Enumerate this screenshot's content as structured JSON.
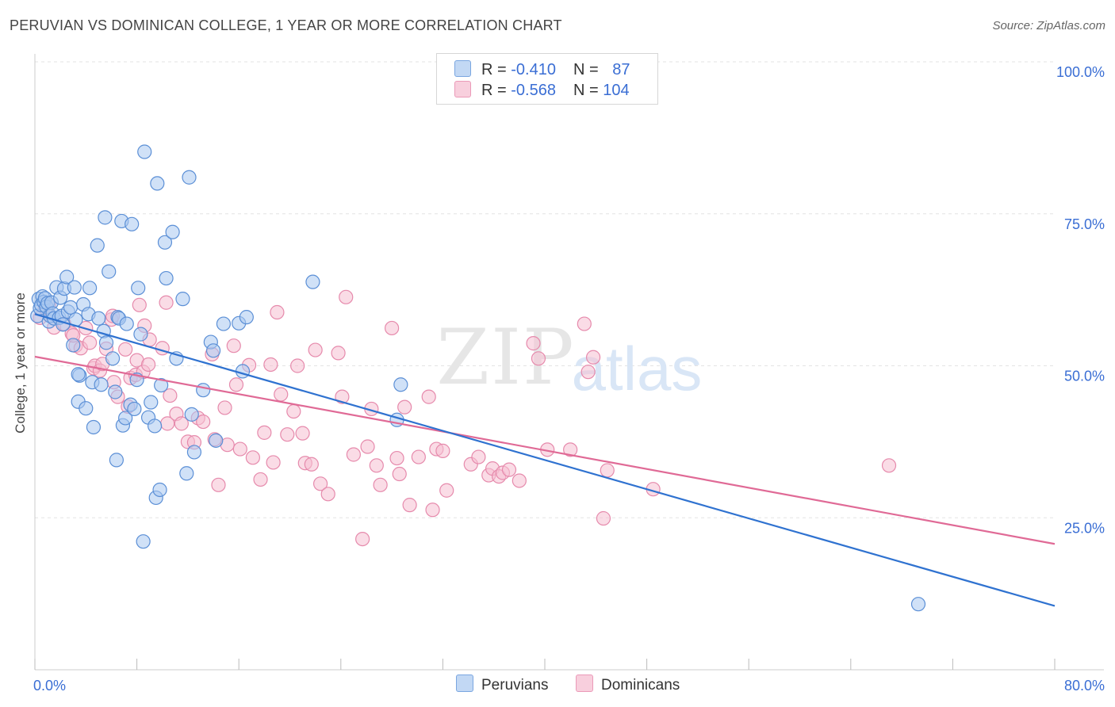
{
  "header": {
    "title": "PERUVIAN VS DOMINICAN COLLEGE, 1 YEAR OR MORE CORRELATION CHART",
    "source": "Source: ZipAtlas.com"
  },
  "watermark": {
    "zip": "ZIP",
    "atlas": "atlas"
  },
  "legend": {
    "r_label": "R = ",
    "n_label": "N = ",
    "series": [
      {
        "r": "-0.410",
        "n": "87"
      },
      {
        "r": "-0.568",
        "n": "104"
      }
    ]
  },
  "bottom_legend": {
    "items": [
      "Peruvians",
      "Dominicans"
    ]
  },
  "colors": {
    "peruvians_fill": "#a9c8f0",
    "peruvians_stroke": "#5b8fd6",
    "peruvians_line": "#2f72d0",
    "dominicans_fill": "#f5bfd2",
    "dominicans_stroke": "#e68aac",
    "dominicans_line": "#e06a96",
    "tick_text": "#3a6ed4",
    "grid": "#e3e3e3"
  },
  "chart_data": {
    "type": "scatter",
    "title": "PERUVIAN VS DOMINICAN COLLEGE, 1 YEAR OR MORE CORRELATION CHART",
    "xlabel": "",
    "ylabel": "College, 1 year or more",
    "xlim": [
      0,
      80
    ],
    "ylim": [
      0,
      100
    ],
    "x_tick_labels": [
      {
        "value": 0,
        "label": "0.0%"
      },
      {
        "value": 80,
        "label": "80.0%"
      }
    ],
    "y_tick_labels": [
      {
        "value": 25,
        "label": "25.0%"
      },
      {
        "value": 50,
        "label": "50.0%"
      },
      {
        "value": 75,
        "label": "75.0%"
      },
      {
        "value": 100,
        "label": "100.0%"
      }
    ],
    "series": [
      {
        "name": "Peruvians",
        "r": -0.41,
        "n": 87,
        "trend": {
          "x": [
            0,
            80
          ],
          "y": [
            58.5,
            10.5
          ]
        },
        "points": [
          [
            0.2,
            58.2
          ],
          [
            0.3,
            61.0
          ],
          [
            0.4,
            59.5
          ],
          [
            0.5,
            60.0
          ],
          [
            0.6,
            61.4
          ],
          [
            0.7,
            60.5
          ],
          [
            0.8,
            61.1
          ],
          [
            0.9,
            59.7
          ],
          [
            1.0,
            60.3
          ],
          [
            1.1,
            57.3
          ],
          [
            1.2,
            58.2
          ],
          [
            1.3,
            60.4
          ],
          [
            1.4,
            58.6
          ],
          [
            1.5,
            57.8
          ],
          [
            1.7,
            62.9
          ],
          [
            1.9,
            57.9
          ],
          [
            2.0,
            61.2
          ],
          [
            2.1,
            58.2
          ],
          [
            2.2,
            56.8
          ],
          [
            2.3,
            62.7
          ],
          [
            2.5,
            64.6
          ],
          [
            2.6,
            58.9
          ],
          [
            2.8,
            59.6
          ],
          [
            3.0,
            53.4
          ],
          [
            3.1,
            62.9
          ],
          [
            3.2,
            57.6
          ],
          [
            3.5,
            48.4
          ],
          [
            3.4,
            44.1
          ],
          [
            3.8,
            60.1
          ],
          [
            4.0,
            43.0
          ],
          [
            4.2,
            58.5
          ],
          [
            4.3,
            62.8
          ],
          [
            4.5,
            47.3
          ],
          [
            4.6,
            39.9
          ],
          [
            4.9,
            69.8
          ],
          [
            5.0,
            57.8
          ],
          [
            5.2,
            46.9
          ],
          [
            5.4,
            55.7
          ],
          [
            5.5,
            74.4
          ],
          [
            5.6,
            53.8
          ],
          [
            5.8,
            65.5
          ],
          [
            6.1,
            51.2
          ],
          [
            6.3,
            45.7
          ],
          [
            6.4,
            34.5
          ],
          [
            6.5,
            58.0
          ],
          [
            6.6,
            57.8
          ],
          [
            6.8,
            73.8
          ],
          [
            6.9,
            40.2
          ],
          [
            7.1,
            41.4
          ],
          [
            7.2,
            56.9
          ],
          [
            7.5,
            43.6
          ],
          [
            7.6,
            73.3
          ],
          [
            7.8,
            42.9
          ],
          [
            8.0,
            47.7
          ],
          [
            8.1,
            62.8
          ],
          [
            8.3,
            55.2
          ],
          [
            8.5,
            21.1
          ],
          [
            8.6,
            85.2
          ],
          [
            8.9,
            41.5
          ],
          [
            9.1,
            44.0
          ],
          [
            9.4,
            40.1
          ],
          [
            9.5,
            28.3
          ],
          [
            9.6,
            80.0
          ],
          [
            9.8,
            29.6
          ],
          [
            9.9,
            46.8
          ],
          [
            10.2,
            70.3
          ],
          [
            10.3,
            64.4
          ],
          [
            10.8,
            72.0
          ],
          [
            11.1,
            51.2
          ],
          [
            11.6,
            61.0
          ],
          [
            11.9,
            32.3
          ],
          [
            12.1,
            81.0
          ],
          [
            12.3,
            42.0
          ],
          [
            12.5,
            35.8
          ],
          [
            13.2,
            46.0
          ],
          [
            13.8,
            53.9
          ],
          [
            14.0,
            52.5
          ],
          [
            14.2,
            37.7
          ],
          [
            14.8,
            56.9
          ],
          [
            16.0,
            57.0
          ],
          [
            16.3,
            49.1
          ],
          [
            16.6,
            58.0
          ],
          [
            21.8,
            63.8
          ],
          [
            28.4,
            41.1
          ],
          [
            28.7,
            46.9
          ],
          [
            69.3,
            10.8
          ],
          [
            3.4,
            48.6
          ]
        ]
      },
      {
        "name": "Dominicans",
        "r": -0.568,
        "n": 104,
        "trend": {
          "x": [
            0,
            80
          ],
          "y": [
            51.5,
            20.7
          ]
        },
        "points": [
          [
            0.4,
            57.9
          ],
          [
            0.8,
            59.5
          ],
          [
            1.1,
            60.0
          ],
          [
            1.5,
            56.3
          ],
          [
            2.3,
            56.9
          ],
          [
            2.9,
            55.3
          ],
          [
            3.2,
            53.3
          ],
          [
            3.6,
            52.9
          ],
          [
            4.0,
            56.2
          ],
          [
            4.3,
            53.8
          ],
          [
            4.6,
            49.6
          ],
          [
            4.7,
            50.0
          ],
          [
            5.1,
            49.2
          ],
          [
            5.3,
            50.3
          ],
          [
            5.6,
            52.8
          ],
          [
            6.0,
            57.6
          ],
          [
            6.1,
            58.2
          ],
          [
            6.2,
            47.3
          ],
          [
            6.5,
            44.9
          ],
          [
            7.1,
            52.7
          ],
          [
            7.3,
            43.3
          ],
          [
            7.5,
            48.0
          ],
          [
            7.9,
            48.5
          ],
          [
            8.0,
            50.9
          ],
          [
            8.2,
            60.0
          ],
          [
            8.5,
            49.0
          ],
          [
            8.9,
            50.2
          ],
          [
            8.6,
            56.6
          ],
          [
            9.0,
            54.3
          ],
          [
            10.0,
            52.9
          ],
          [
            10.3,
            60.4
          ],
          [
            10.4,
            40.5
          ],
          [
            10.6,
            45.1
          ],
          [
            11.1,
            42.1
          ],
          [
            11.5,
            40.5
          ],
          [
            12.0,
            37.5
          ],
          [
            12.5,
            37.4
          ],
          [
            12.8,
            41.4
          ],
          [
            13.2,
            40.8
          ],
          [
            13.9,
            51.9
          ],
          [
            14.1,
            37.9
          ],
          [
            14.4,
            30.4
          ],
          [
            14.9,
            43.1
          ],
          [
            15.1,
            37.0
          ],
          [
            15.6,
            53.3
          ],
          [
            15.8,
            46.9
          ],
          [
            16.1,
            36.3
          ],
          [
            16.8,
            50.1
          ],
          [
            17.1,
            34.9
          ],
          [
            17.7,
            31.3
          ],
          [
            18.0,
            39.0
          ],
          [
            18.5,
            50.2
          ],
          [
            18.7,
            34.1
          ],
          [
            19.0,
            58.8
          ],
          [
            19.3,
            45.3
          ],
          [
            19.8,
            38.7
          ],
          [
            20.3,
            42.5
          ],
          [
            20.6,
            50.0
          ],
          [
            21.0,
            38.9
          ],
          [
            21.2,
            34.0
          ],
          [
            21.7,
            33.8
          ],
          [
            22.0,
            52.6
          ],
          [
            22.4,
            30.6
          ],
          [
            23.0,
            28.9
          ],
          [
            23.8,
            52.1
          ],
          [
            24.1,
            44.9
          ],
          [
            24.4,
            61.3
          ],
          [
            25.0,
            35.4
          ],
          [
            25.7,
            21.5
          ],
          [
            26.1,
            36.7
          ],
          [
            26.4,
            42.9
          ],
          [
            26.8,
            33.6
          ],
          [
            27.1,
            30.4
          ],
          [
            28.0,
            56.2
          ],
          [
            28.4,
            34.8
          ],
          [
            28.6,
            32.2
          ],
          [
            29.0,
            43.2
          ],
          [
            29.4,
            27.1
          ],
          [
            30.1,
            35.0
          ],
          [
            30.9,
            44.9
          ],
          [
            31.2,
            26.3
          ],
          [
            31.5,
            36.3
          ],
          [
            32.0,
            36.0
          ],
          [
            32.3,
            29.5
          ],
          [
            34.2,
            33.8
          ],
          [
            34.8,
            35.0
          ],
          [
            35.6,
            32.0
          ],
          [
            35.9,
            33.1
          ],
          [
            36.4,
            31.8
          ],
          [
            36.7,
            32.4
          ],
          [
            37.2,
            32.9
          ],
          [
            38.0,
            31.1
          ],
          [
            39.1,
            53.7
          ],
          [
            39.5,
            51.2
          ],
          [
            40.2,
            36.2
          ],
          [
            42.0,
            36.2
          ],
          [
            43.1,
            56.9
          ],
          [
            43.4,
            49.0
          ],
          [
            43.8,
            51.4
          ],
          [
            44.6,
            24.9
          ],
          [
            44.9,
            32.8
          ],
          [
            48.5,
            29.7
          ],
          [
            67.0,
            33.6
          ],
          [
            3.0,
            55.0
          ]
        ]
      }
    ]
  }
}
